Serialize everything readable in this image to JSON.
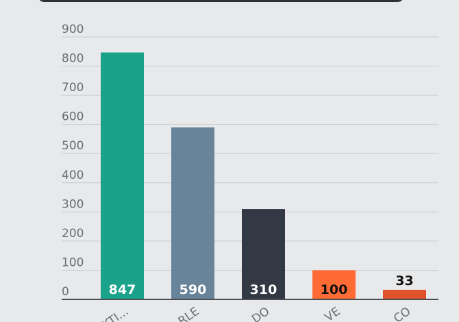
{
  "chart_data": {
    "type": "bar",
    "categories": [
      "KTI...",
      "RLE",
      "DO",
      "VE",
      "CO"
    ],
    "series": [
      {
        "values": [
          847,
          590,
          310,
          100,
          33
        ],
        "colors": [
          "#1aa38a",
          "#68849a",
          "#333845",
          "#ff6b35",
          "#e0522a"
        ]
      }
    ],
    "ylim": [
      0,
      900
    ],
    "yticks": [
      0,
      100,
      200,
      300,
      400,
      500,
      600,
      700,
      800,
      900
    ],
    "grid": true
  }
}
